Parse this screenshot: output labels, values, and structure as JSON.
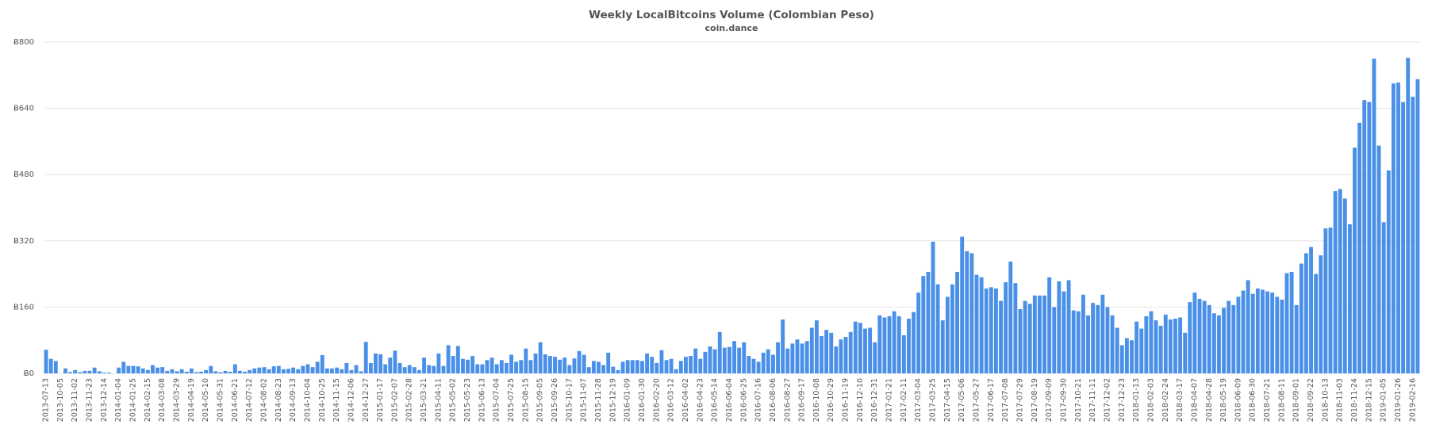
{
  "chart_data": {
    "type": "bar",
    "title": "Weekly LocalBitcoins Volume (Colombian Peso)",
    "subtitle": "coin.dance",
    "color": "#4a90e8",
    "grid": true,
    "ylim": [
      0,
      800
    ],
    "yticks": [
      {
        "value": 0,
        "label": "Ƀ0"
      },
      {
        "value": 160,
        "label": "Ƀ160"
      },
      {
        "value": 320,
        "label": "Ƀ320"
      },
      {
        "value": 480,
        "label": "Ƀ480"
      },
      {
        "value": 640,
        "label": "Ƀ640"
      },
      {
        "value": 800,
        "label": "Ƀ800"
      }
    ],
    "categories": [
      "2013-07-13",
      null,
      null,
      "2013-10-05",
      null,
      null,
      "2013-11-02",
      null,
      null,
      "2013-11-23",
      null,
      null,
      "2013-12-14",
      null,
      null,
      "2014-01-04",
      null,
      null,
      "2014-01-25",
      null,
      null,
      "2014-02-15",
      null,
      null,
      "2014-03-08",
      null,
      null,
      "2014-03-29",
      null,
      null,
      "2014-04-19",
      null,
      null,
      "2014-05-10",
      null,
      null,
      "2014-05-31",
      null,
      null,
      "2014-06-21",
      null,
      null,
      "2014-07-12",
      null,
      null,
      "2014-08-02",
      null,
      null,
      "2014-08-23",
      null,
      null,
      "2014-09-13",
      null,
      null,
      "2014-10-04",
      null,
      null,
      "2014-10-25",
      null,
      null,
      "2014-11-15",
      null,
      null,
      "2014-12-06",
      null,
      null,
      "2014-12-27",
      null,
      null,
      "2015-01-17",
      null,
      null,
      "2015-02-07",
      null,
      null,
      "2015-02-28",
      null,
      null,
      "2015-03-21",
      null,
      null,
      "2015-04-11",
      null,
      null,
      "2015-05-02",
      null,
      null,
      "2015-05-23",
      null,
      null,
      "2015-06-13",
      null,
      null,
      "2015-07-04",
      null,
      null,
      "2015-07-25",
      null,
      null,
      "2015-08-15",
      null,
      null,
      "2015-09-05",
      null,
      null,
      "2015-09-26",
      null,
      null,
      "2015-10-17",
      null,
      null,
      "2015-11-07",
      null,
      null,
      "2015-11-28",
      null,
      null,
      "2015-12-19",
      null,
      null,
      "2016-01-09",
      null,
      null,
      "2016-01-30",
      null,
      null,
      "2016-02-20",
      null,
      null,
      "2016-03-12",
      null,
      null,
      "2016-04-02",
      null,
      null,
      "2016-04-23",
      null,
      null,
      "2016-05-14",
      null,
      null,
      "2016-06-04",
      null,
      null,
      "2016-06-25",
      null,
      null,
      "2016-07-16",
      null,
      null,
      "2016-08-06",
      null,
      null,
      "2016-08-27",
      null,
      null,
      "2016-09-17",
      null,
      null,
      "2016-10-08",
      null,
      null,
      "2016-10-29",
      null,
      null,
      "2016-11-19",
      null,
      null,
      "2016-12-10",
      null,
      null,
      "2016-12-31",
      null,
      null,
      "2017-01-21",
      null,
      null,
      "2017-02-11",
      null,
      null,
      "2017-03-04",
      null,
      null,
      "2017-03-25",
      null,
      null,
      "2017-04-15",
      null,
      null,
      "2017-05-06",
      null,
      null,
      "2017-05-27",
      null,
      null,
      "2017-06-17",
      null,
      null,
      "2017-07-08",
      null,
      null,
      "2017-07-29",
      null,
      null,
      "2017-08-19",
      null,
      null,
      "2017-09-09",
      null,
      null,
      "2017-09-30",
      null,
      null,
      "2017-10-21",
      null,
      null,
      "2017-11-11",
      null,
      null,
      "2017-12-02",
      null,
      null,
      "2017-12-23",
      null,
      null,
      "2018-01-13",
      null,
      null,
      "2018-02-03",
      null,
      null,
      "2018-02-24",
      null,
      null,
      "2018-03-17",
      null,
      null,
      "2018-04-07",
      null,
      null,
      "2018-04-28",
      null,
      null,
      "2018-05-19",
      null,
      null,
      "2018-06-09",
      null,
      null,
      "2018-06-30",
      null,
      null,
      "2018-07-21",
      null,
      null,
      "2018-08-11",
      null,
      null,
      "2018-09-01",
      null,
      null,
      "2018-09-22",
      null,
      null,
      "2018-10-13",
      null,
      null,
      "2018-11-03",
      null,
      null,
      "2018-11-24",
      null,
      null,
      "2018-12-15",
      null,
      null,
      "2019-01-05",
      null,
      null,
      "2019-01-26",
      null,
      null,
      "2019-02-16",
      null
    ],
    "values": [
      57,
      35,
      30,
      0,
      12,
      3,
      8,
      3,
      6,
      6,
      14,
      5,
      2,
      2,
      0,
      14,
      28,
      18,
      18,
      17,
      12,
      8,
      20,
      14,
      15,
      6,
      10,
      5,
      10,
      4,
      12,
      3,
      4,
      8,
      18,
      5,
      3,
      6,
      4,
      22,
      6,
      4,
      8,
      12,
      14,
      15,
      10,
      17,
      18,
      10,
      11,
      14,
      10,
      18,
      22,
      15,
      28,
      44,
      12,
      12,
      14,
      10,
      25,
      8,
      20,
      5,
      76,
      25,
      48,
      46,
      22,
      38,
      55,
      25,
      15,
      20,
      15,
      8,
      38,
      20,
      18,
      48,
      18,
      68,
      42,
      66,
      35,
      33,
      42,
      22,
      22,
      32,
      38,
      22,
      32,
      25,
      45,
      28,
      32,
      60,
      32,
      48,
      75,
      46,
      42,
      40,
      33,
      38,
      20,
      36,
      54,
      45,
      15,
      30,
      28,
      20,
      50,
      16,
      8,
      28,
      32,
      32,
      32,
      30,
      48,
      40,
      25,
      56,
      32,
      35,
      10,
      30,
      40,
      42,
      60,
      35,
      52,
      65,
      58,
      100,
      62,
      64,
      78,
      62,
      75,
      42,
      35,
      28,
      50,
      58,
      45,
      75,
      130,
      60,
      72,
      82,
      72,
      78,
      110,
      128,
      90,
      105,
      98,
      65,
      82,
      88,
      100,
      125,
      122,
      108,
      110,
      75,
      140,
      135,
      138,
      150,
      138,
      92,
      132,
      148,
      195,
      235,
      245,
      318,
      215,
      128,
      185,
      215,
      245,
      330,
      295,
      290,
      238,
      232,
      205,
      208,
      205,
      175,
      220,
      270,
      218,
      155,
      175,
      168,
      188,
      188,
      188,
      232,
      160,
      222,
      198,
      225,
      152,
      150,
      190,
      140,
      170,
      165,
      190,
      160,
      140,
      110,
      68,
      85,
      80,
      125,
      108,
      138,
      150,
      128,
      115,
      142,
      130,
      132,
      135,
      98,
      172,
      195,
      180,
      175,
      165,
      145,
      140,
      158,
      175,
      165,
      185,
      200,
      225,
      192,
      205,
      202,
      198,
      195,
      185,
      178,
      242,
      245,
      165,
      265,
      290,
      305,
      240,
      285,
      350,
      352,
      440,
      445,
      422,
      360,
      545,
      605,
      660,
      655,
      760,
      550,
      365,
      490,
      700,
      702,
      655,
      762,
      668,
      710
    ]
  }
}
